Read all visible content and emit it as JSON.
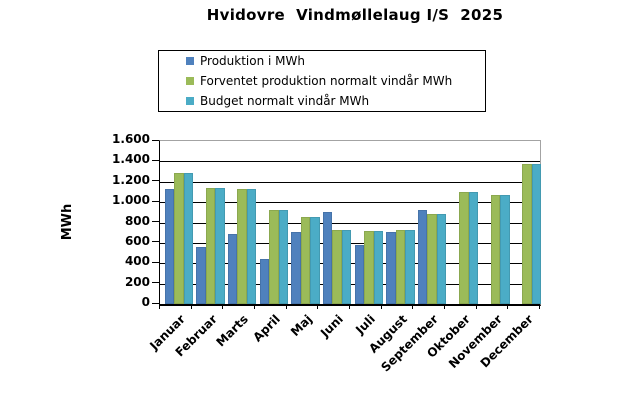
{
  "chart_data": {
    "type": "bar",
    "title": "Hvidovre  Vindmøllelaug I/S  2025",
    "ylabel": "MWh",
    "ylim": [
      0,
      1600
    ],
    "ytick_step": 200,
    "ytick_labels": [
      "0",
      "200",
      "400",
      "600",
      "800",
      "1.000",
      "1.200",
      "1.400",
      "1.600"
    ],
    "grid": true,
    "legend_position": "top-center-boxed",
    "categories": [
      "Januar",
      "Februar",
      "Marts",
      "April",
      "Maj",
      "Juni",
      "Juli",
      "August",
      "September",
      "Oktober",
      "November",
      "December"
    ],
    "series": [
      {
        "name": "Produktion i MWh",
        "color": "#4F81BD",
        "values": [
          1130,
          560,
          690,
          445,
          710,
          905,
          580,
          710,
          925,
          null,
          null,
          null
        ]
      },
      {
        "name": "Forventet produktion normalt vindår MWh",
        "color": "#9BBB59",
        "values": [
          1290,
          1140,
          1125,
          925,
          850,
          730,
          720,
          730,
          885,
          1095,
          1070,
          1375
        ]
      },
      {
        "name": "Budget normalt vindår MWh",
        "color": "#4BACC6",
        "values": [
          1290,
          1140,
          1125,
          925,
          850,
          730,
          720,
          730,
          880,
          1095,
          1070,
          1375
        ]
      }
    ],
    "colors": {
      "gridline": "#000000",
      "plot_border": "#a3a3a3",
      "background": "#ffffff"
    }
  }
}
